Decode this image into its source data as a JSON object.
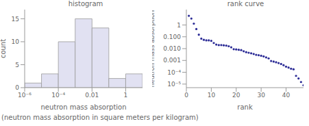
{
  "caption": "(neutron mass absorption in square meters per kilogram)",
  "chart_data": [
    {
      "type": "histogram",
      "title": "histogram",
      "x_label": "neutron mass absorption",
      "y_label": "count",
      "bins": [
        1e-06,
        1e-05,
        0.0001,
        0.001,
        0.01,
        0.1,
        1,
        10
      ],
      "counts": [
        1,
        3,
        10,
        15,
        13,
        2,
        3
      ],
      "color": "#e1e1f2",
      "log": "x",
      "xlim": [
        1e-06,
        10
      ],
      "xticks": [
        {
          "value": 1e-06,
          "label": "10⁻⁶"
        },
        {
          "value": 0.0001,
          "label": "10⁻⁴"
        },
        0.01,
        1
      ],
      "ylim": [
        0,
        17
      ],
      "yticks": [
        0,
        5,
        10,
        15
      ]
    },
    {
      "type": "scatter",
      "title": "rank curve",
      "x_label": "rank",
      "y_label": "neutron mass absorption",
      "x": [
        1,
        2,
        3,
        4,
        5,
        6,
        7,
        8,
        9,
        10,
        11,
        12,
        13,
        14,
        15,
        16,
        17,
        18,
        19,
        20,
        21,
        22,
        23,
        24,
        25,
        26,
        27,
        28,
        29,
        30,
        31,
        32,
        33,
        34,
        35,
        36,
        37,
        38,
        39,
        40,
        41,
        42,
        43,
        44,
        45,
        46,
        47
      ],
      "values": [
        6,
        3.5,
        1.3,
        0.45,
        0.15,
        0.07,
        0.055,
        0.05,
        0.05,
        0.045,
        0.03,
        0.022,
        0.02,
        0.02,
        0.019,
        0.018,
        0.016,
        0.013,
        0.009,
        0.0085,
        0.008,
        0.0075,
        0.006,
        0.005,
        0.0045,
        0.004,
        0.0035,
        0.003,
        0.0028,
        0.0025,
        0.0022,
        0.0018,
        0.0015,
        0.0009,
        0.0008,
        0.0007,
        0.0006,
        0.0005,
        0.0004,
        0.0003,
        0.00025,
        0.0002,
        0.00018,
        5e-05,
        3e-05,
        1.5e-05,
        8e-06
      ],
      "color": "#2c2c96",
      "marker": "circle",
      "log": "y",
      "xlim": [
        0,
        47
      ],
      "xticks": [
        0,
        10,
        20,
        30,
        40
      ],
      "ylim": [
        5e-06,
        20
      ],
      "yticks": [
        {
          "value": 1e-05,
          "label": "10⁻⁵"
        },
        {
          "value": 0.0001,
          "label": "10⁻⁴"
        },
        {
          "value": 0.001,
          "label": "0.001"
        },
        {
          "value": 0.01,
          "label": "0.010"
        },
        {
          "value": 0.1,
          "label": "0.100"
        },
        1
      ]
    }
  ]
}
